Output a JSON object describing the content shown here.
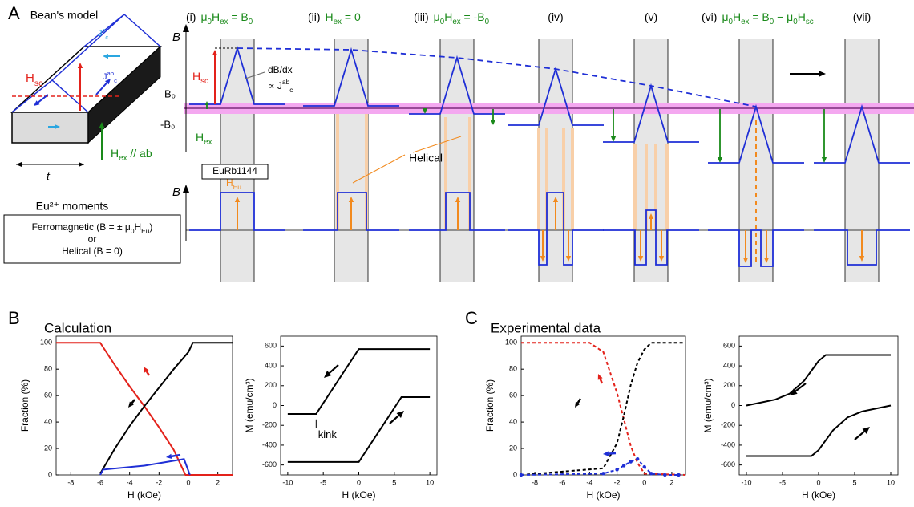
{
  "panel_labels": [
    "A",
    "B",
    "C"
  ],
  "diagram": {
    "model_title": "Bean's model",
    "sketch": {
      "h_sc": [
        {
          "t": "H",
          "sub": "sc"
        }
      ],
      "jc_c": [
        {
          "t": "J",
          "sub": "c",
          "sup": "c"
        }
      ],
      "jc_ab": [
        {
          "t": "J",
          "sub": "c",
          "sup": "ab"
        }
      ],
      "thickness": "t",
      "h_ex": [
        {
          "t": "H",
          "sub": "ex"
        },
        {
          "t": " // ab"
        }
      ]
    },
    "moments_title": "Eu²⁺ moments",
    "moments_box": [
      [
        {
          "t": "Ferromagnetic (B = ± μ",
          "sub": "0"
        },
        {
          "t": "H",
          "sub": "Eu"
        },
        {
          "t": ")"
        }
      ],
      [
        {
          "t": "or"
        }
      ],
      [
        {
          "t": "Helical (B = 0)"
        }
      ]
    ],
    "b_axis_label": "B",
    "b0_label": "B₀",
    "minus_b0_label": "-B₀",
    "h_sc": [
      {
        "t": "H",
        "sub": "sc"
      }
    ],
    "h_ex": [
      {
        "t": "H",
        "sub": "ex"
      }
    ],
    "slope_label": [
      {
        "t": "dB/dx"
      }
    ],
    "slope_prop": [
      {
        "t": "∝ J",
        "sub": "c",
        "sup": "ab"
      }
    ],
    "sample": "EuRb1144",
    "h_eu": [
      {
        "t": "H",
        "sub": "Eu"
      }
    ],
    "helical": "Helical",
    "moment_axis_label": "B",
    "steps": [
      {
        "numeral": "(i)",
        "condition": [
          {
            "t": "μ",
            "sub": "0"
          },
          {
            "t": "H",
            "sub": "ex"
          },
          {
            "t": " = B",
            "sub": "0"
          }
        ]
      },
      {
        "numeral": "(ii)",
        "condition": [
          {
            "t": "H",
            "sub": "ex"
          },
          {
            "t": " = 0"
          }
        ]
      },
      {
        "numeral": "(iii)",
        "condition": [
          {
            "t": "μ",
            "sub": "0"
          },
          {
            "t": "H",
            "sub": "ex"
          },
          {
            "t": " = -B",
            "sub": "0"
          }
        ]
      },
      {
        "numeral": "(iv)"
      },
      {
        "numeral": "(v)"
      },
      {
        "numeral": "(vi)",
        "condition": [
          {
            "t": "μ",
            "sub": "0"
          },
          {
            "t": "H",
            "sub": "ex"
          },
          {
            "t": " = B",
            "sub": "0"
          },
          {
            "t": " − μ",
            "sub": "0"
          },
          {
            "t": "H",
            "sub": "sc"
          }
        ]
      },
      {
        "numeral": "(vii)"
      }
    ]
  },
  "section_titles": {
    "b": "Calculation",
    "c": "Experimental data"
  },
  "chart_data": [
    {
      "type": "line",
      "xlabel": "H (kOe)",
      "ylabel": "Fraction (%)",
      "xlim": [
        -9,
        3
      ],
      "xticks": [
        -8,
        -6,
        -4,
        -2,
        0,
        2
      ],
      "ylim": [
        0,
        105
      ],
      "yticks": [
        0,
        20,
        40,
        60,
        80,
        100
      ],
      "series": [
        {
          "color": "#e3221b",
          "x": [
            -9,
            -6,
            -5,
            -4,
            -3,
            -2,
            -1,
            -0.2,
            3
          ],
          "values": [
            100,
            100,
            83,
            67,
            52,
            36,
            19,
            0,
            0
          ]
        },
        {
          "color": "#000000",
          "x": [
            -6,
            -5,
            -4,
            -3,
            -2,
            -1,
            0,
            0.3,
            3
          ],
          "values": [
            1,
            20,
            37,
            52,
            66,
            80,
            93,
            100,
            100
          ]
        },
        {
          "color": "#1f2fd6",
          "x": [
            -6,
            -5.8,
            -3,
            -0.3,
            0.1
          ],
          "values": [
            0,
            4,
            7,
            12,
            0
          ]
        }
      ]
    },
    {
      "type": "line",
      "xlabel": "H (kOe)",
      "ylabel": "M (emu/cm³)",
      "xlim": [
        -11,
        11
      ],
      "xticks": [
        -10,
        -5,
        0,
        5,
        10
      ],
      "ylim": [
        -700,
        700
      ],
      "yticks": [
        -600,
        -400,
        -200,
        0,
        200,
        400,
        600
      ],
      "annotations": [
        "kink"
      ],
      "series": [
        {
          "color": "#000000",
          "x": [
            -10,
            -6,
            0,
            10
          ],
          "values": [
            -85,
            -85,
            570,
            570
          ]
        },
        {
          "color": "#000000",
          "x": [
            -10,
            0,
            6,
            10
          ],
          "values": [
            -570,
            -570,
            85,
            85
          ]
        }
      ]
    },
    {
      "type": "line",
      "xlabel": "H (kOe)",
      "ylabel": "Fraction (%)",
      "xlim": [
        -9,
        3
      ],
      "xticks": [
        -8,
        -6,
        -4,
        -2,
        0,
        2
      ],
      "ylim": [
        0,
        105
      ],
      "yticks": [
        0,
        20,
        40,
        60,
        80,
        100
      ],
      "series": [
        {
          "color": "#e3221b",
          "dashed": true,
          "x": [
            -9,
            -4,
            -3,
            -2,
            -1.5,
            -1,
            -0.5,
            0,
            3
          ],
          "values": [
            100,
            100,
            93,
            62,
            42,
            22,
            9,
            1,
            0
          ]
        },
        {
          "color": "#000000",
          "dashed": true,
          "x": [
            -9,
            -3,
            -2,
            -1.5,
            -1,
            -0.5,
            0,
            0.5,
            3
          ],
          "values": [
            0,
            5,
            24,
            45,
            68,
            85,
            95,
            100,
            100
          ]
        },
        {
          "color": "#1f2fd6",
          "dashed": true,
          "markers": true,
          "x": [
            -9,
            -3,
            -2,
            -1.5,
            -1,
            -0.5,
            0,
            0.5,
            1.5,
            2.5
          ],
          "values": [
            0,
            1,
            4,
            7,
            10,
            12,
            6,
            1,
            0,
            0
          ]
        }
      ]
    },
    {
      "type": "line",
      "xlabel": "H (kOe)",
      "ylabel": "M (emu/cm³)",
      "xlim": [
        -11,
        11
      ],
      "xticks": [
        -10,
        -5,
        0,
        5,
        10
      ],
      "ylim": [
        -700,
        700
      ],
      "yticks": [
        -600,
        -400,
        -200,
        0,
        200,
        400,
        600
      ],
      "series": [
        {
          "color": "#000000",
          "x": [
            -10,
            -6,
            -4,
            -2,
            0,
            1,
            10
          ],
          "values": [
            0,
            60,
            120,
            250,
            450,
            510,
            510
          ]
        },
        {
          "color": "#000000",
          "x": [
            -10,
            -1,
            0,
            2,
            4,
            6,
            10
          ],
          "values": [
            -510,
            -510,
            -450,
            -250,
            -120,
            -60,
            0
          ]
        }
      ]
    }
  ]
}
